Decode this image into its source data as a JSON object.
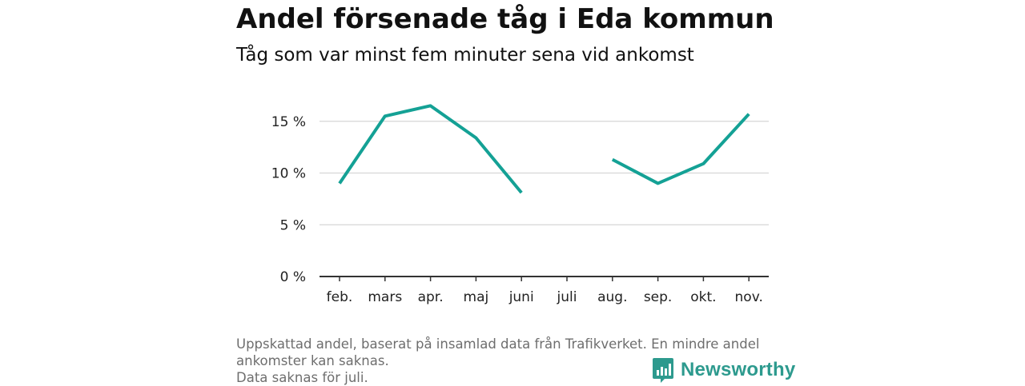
{
  "header": {
    "title": "Andel försenade tåg i Eda kommun",
    "subtitle": "Tåg som var minst fem minuter sena vid ankomst"
  },
  "footer": {
    "note_line1": "Uppskattad andel, baserat på insamlad data från Trafikverket. En mindre andel",
    "note_line2": "ankomster kan saknas.",
    "note_line3": "Data saknas för juli."
  },
  "brand": {
    "name": "Newsworthy",
    "color": "#2d9a8e"
  },
  "colors": {
    "line": "#14a195",
    "grid": "#d6d6d6",
    "axis": "#333333"
  },
  "chart_data": {
    "type": "line",
    "categories": [
      "feb.",
      "mars",
      "apr.",
      "maj",
      "juni",
      "juli",
      "aug.",
      "sep.",
      "okt.",
      "nov."
    ],
    "series": [
      {
        "values": [
          9.0,
          15.5,
          16.5,
          13.4,
          8.1,
          null,
          11.3,
          9.0,
          10.9,
          15.7
        ]
      }
    ],
    "y_ticks": [
      0,
      5,
      10,
      15
    ],
    "y_tick_labels": [
      "0 %",
      "5 %",
      "10 %",
      "15 %"
    ],
    "ylim": [
      0,
      18
    ],
    "grid": true,
    "xlabel": "",
    "ylabel": ""
  }
}
